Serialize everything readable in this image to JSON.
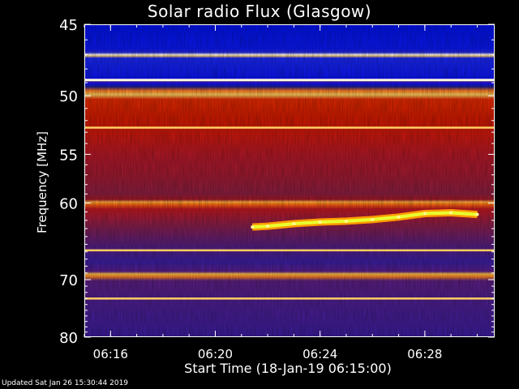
{
  "header": {
    "title": "Solar radio Flux (Glasgow)"
  },
  "footer": {
    "updated": "Updated Sat Jan 26 15:30:44 2019"
  },
  "chart_data": {
    "type": "heatmap",
    "title": "Solar radio Flux (Glasgow)",
    "xlabel": "Start Time (18-Jan-19 06:15:00)",
    "ylabel": "Frequency [MHz]",
    "x_range": [
      "06:15:00",
      "06:30:40"
    ],
    "y_range": [
      45,
      80
    ],
    "x_ticks": [
      "06:16",
      "06:20",
      "06:24",
      "06:28"
    ],
    "y_ticks": [
      45,
      50,
      55,
      60,
      70,
      80
    ],
    "colormap": [
      "#0000ff",
      "#3a1e8c",
      "#7a1e3c",
      "#cc0000",
      "#ff2a00",
      "#ff8800",
      "#ffee00",
      "#ffffff"
    ],
    "frequency_bands": [
      {
        "from": 45,
        "to": 48.5,
        "level": "low"
      },
      {
        "from": 48.5,
        "to": 49.2,
        "level": "very high"
      },
      {
        "from": 49.2,
        "to": 51.6,
        "level": "low"
      },
      {
        "from": 52.0,
        "to": 53.2,
        "level": "high"
      },
      {
        "from": 53.2,
        "to": 65.5,
        "level": "medium-high"
      },
      {
        "from": 65.5,
        "to": 66.2,
        "level": "high"
      },
      {
        "from": 66.2,
        "to": 80,
        "level": "low-medium"
      }
    ],
    "interference_lines_mhz": [
      48.8,
      52.6,
      65.8,
      73.0
    ],
    "burst_trace": [
      {
        "time": "06:21:25",
        "freq_mhz": 62.8
      },
      {
        "time": "06:22:00",
        "freq_mhz": 62.7
      },
      {
        "time": "06:23:00",
        "freq_mhz": 62.4
      },
      {
        "time": "06:24:00",
        "freq_mhz": 62.2
      },
      {
        "time": "06:25:00",
        "freq_mhz": 62.1
      },
      {
        "time": "06:26:00",
        "freq_mhz": 61.9
      },
      {
        "time": "06:27:00",
        "freq_mhz": 61.6
      },
      {
        "time": "06:28:00",
        "freq_mhz": 61.2
      },
      {
        "time": "06:29:00",
        "freq_mhz": 61.1
      },
      {
        "time": "06:30:00",
        "freq_mhz": 61.3
      }
    ]
  }
}
